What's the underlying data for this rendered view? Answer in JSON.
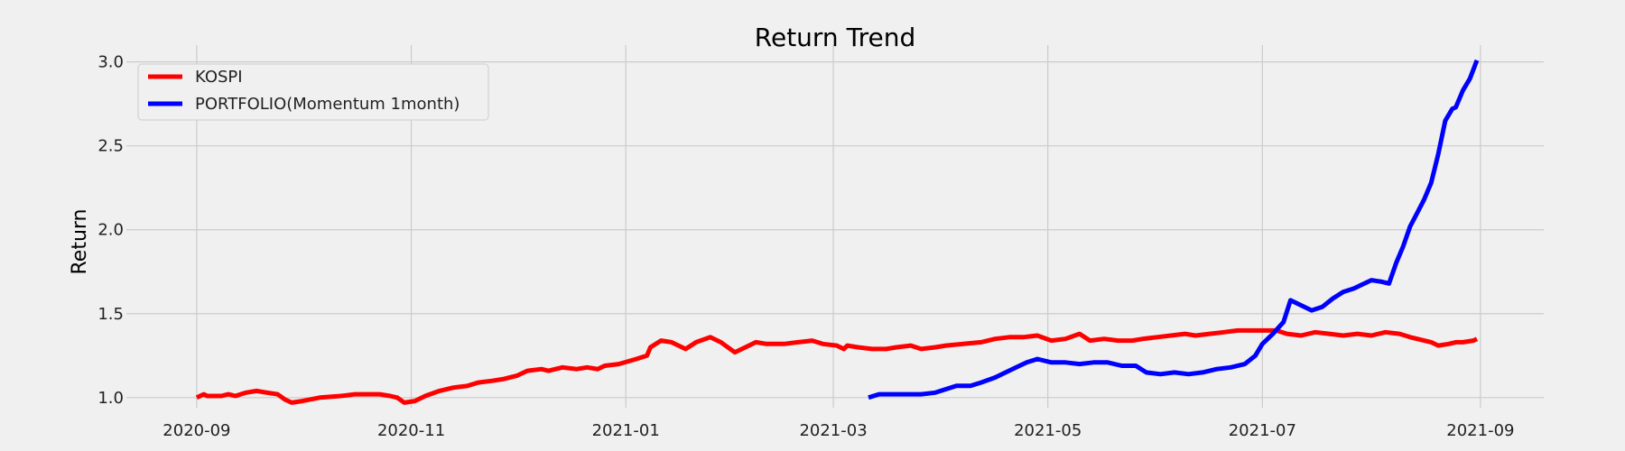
{
  "chart_data": {
    "type": "line",
    "title": "Return Trend",
    "xlabel": "",
    "ylabel": "Return",
    "x_axis_type": "date",
    "xlim": [
      "2020-08-12",
      "2021-09-19"
    ],
    "ylim": [
      0.94,
      3.1
    ],
    "x_ticks": [
      "2020-09-01",
      "2020-11-01",
      "2021-01-01",
      "2021-03-01",
      "2021-05-01",
      "2021-07-01",
      "2021-09-01"
    ],
    "x_tick_labels": [
      "2020-09",
      "2020-11",
      "2021-01",
      "2021-03",
      "2021-05",
      "2021-07",
      "2021-09"
    ],
    "y_ticks": [
      1.0,
      1.5,
      2.0,
      2.5,
      3.0
    ],
    "y_tick_labels": [
      "1.0",
      "1.5",
      "2.0",
      "2.5",
      "3.0"
    ],
    "grid": true,
    "legend_position": "top-left",
    "series": [
      {
        "name": "KOSPI",
        "color": "#ff0000",
        "points": [
          [
            "2020-09-01",
            1.0
          ],
          [
            "2020-09-03",
            1.02
          ],
          [
            "2020-09-04",
            1.01
          ],
          [
            "2020-09-08",
            1.01
          ],
          [
            "2020-09-10",
            1.02
          ],
          [
            "2020-09-12",
            1.01
          ],
          [
            "2020-09-15",
            1.03
          ],
          [
            "2020-09-18",
            1.04
          ],
          [
            "2020-09-21",
            1.03
          ],
          [
            "2020-09-24",
            1.02
          ],
          [
            "2020-09-26",
            0.99
          ],
          [
            "2020-09-28",
            0.97
          ],
          [
            "2020-10-01",
            0.98
          ],
          [
            "2020-10-06",
            1.0
          ],
          [
            "2020-10-12",
            1.01
          ],
          [
            "2020-10-16",
            1.02
          ],
          [
            "2020-10-20",
            1.02
          ],
          [
            "2020-10-23",
            1.02
          ],
          [
            "2020-10-26",
            1.01
          ],
          [
            "2020-10-28",
            1.0
          ],
          [
            "2020-10-30",
            0.97
          ],
          [
            "2020-11-02",
            0.98
          ],
          [
            "2020-11-05",
            1.01
          ],
          [
            "2020-11-09",
            1.04
          ],
          [
            "2020-11-13",
            1.06
          ],
          [
            "2020-11-17",
            1.07
          ],
          [
            "2020-11-20",
            1.09
          ],
          [
            "2020-11-24",
            1.1
          ],
          [
            "2020-11-27",
            1.11
          ],
          [
            "2020-12-01",
            1.13
          ],
          [
            "2020-12-04",
            1.16
          ],
          [
            "2020-12-08",
            1.17
          ],
          [
            "2020-12-10",
            1.16
          ],
          [
            "2020-12-14",
            1.18
          ],
          [
            "2020-12-18",
            1.17
          ],
          [
            "2020-12-21",
            1.18
          ],
          [
            "2020-12-24",
            1.17
          ],
          [
            "2020-12-26",
            1.19
          ],
          [
            "2020-12-30",
            1.2
          ],
          [
            "2021-01-04",
            1.23
          ],
          [
            "2021-01-07",
            1.25
          ],
          [
            "2021-01-08",
            1.3
          ],
          [
            "2021-01-11",
            1.34
          ],
          [
            "2021-01-14",
            1.33
          ],
          [
            "2021-01-18",
            1.29
          ],
          [
            "2021-01-21",
            1.33
          ],
          [
            "2021-01-25",
            1.36
          ],
          [
            "2021-01-28",
            1.33
          ],
          [
            "2021-02-01",
            1.27
          ],
          [
            "2021-02-04",
            1.3
          ],
          [
            "2021-02-07",
            1.33
          ],
          [
            "2021-02-10",
            1.32
          ],
          [
            "2021-02-15",
            1.32
          ],
          [
            "2021-02-19",
            1.33
          ],
          [
            "2021-02-23",
            1.34
          ],
          [
            "2021-02-26",
            1.32
          ],
          [
            "2021-03-02",
            1.31
          ],
          [
            "2021-03-04",
            1.29
          ],
          [
            "2021-03-05",
            1.31
          ],
          [
            "2021-03-08",
            1.3
          ],
          [
            "2021-03-12",
            1.29
          ],
          [
            "2021-03-16",
            1.29
          ],
          [
            "2021-03-19",
            1.3
          ],
          [
            "2021-03-23",
            1.31
          ],
          [
            "2021-03-26",
            1.29
          ],
          [
            "2021-03-30",
            1.3
          ],
          [
            "2021-04-02",
            1.31
          ],
          [
            "2021-04-07",
            1.32
          ],
          [
            "2021-04-12",
            1.33
          ],
          [
            "2021-04-16",
            1.35
          ],
          [
            "2021-04-20",
            1.36
          ],
          [
            "2021-04-24",
            1.36
          ],
          [
            "2021-04-28",
            1.37
          ],
          [
            "2021-05-02",
            1.34
          ],
          [
            "2021-05-06",
            1.35
          ],
          [
            "2021-05-10",
            1.38
          ],
          [
            "2021-05-13",
            1.34
          ],
          [
            "2021-05-17",
            1.35
          ],
          [
            "2021-05-21",
            1.34
          ],
          [
            "2021-05-25",
            1.34
          ],
          [
            "2021-05-28",
            1.35
          ],
          [
            "2021-06-01",
            1.36
          ],
          [
            "2021-06-05",
            1.37
          ],
          [
            "2021-06-09",
            1.38
          ],
          [
            "2021-06-12",
            1.37
          ],
          [
            "2021-06-16",
            1.38
          ],
          [
            "2021-06-20",
            1.39
          ],
          [
            "2021-06-24",
            1.4
          ],
          [
            "2021-06-28",
            1.4
          ],
          [
            "2021-07-01",
            1.4
          ],
          [
            "2021-07-05",
            1.4
          ],
          [
            "2021-07-08",
            1.38
          ],
          [
            "2021-07-12",
            1.37
          ],
          [
            "2021-07-16",
            1.39
          ],
          [
            "2021-07-20",
            1.38
          ],
          [
            "2021-07-24",
            1.37
          ],
          [
            "2021-07-28",
            1.38
          ],
          [
            "2021-08-01",
            1.37
          ],
          [
            "2021-08-05",
            1.39
          ],
          [
            "2021-08-09",
            1.38
          ],
          [
            "2021-08-12",
            1.36
          ],
          [
            "2021-08-16",
            1.34
          ],
          [
            "2021-08-18",
            1.33
          ],
          [
            "2021-08-20",
            1.31
          ],
          [
            "2021-08-23",
            1.32
          ],
          [
            "2021-08-25",
            1.33
          ],
          [
            "2021-08-27",
            1.33
          ],
          [
            "2021-08-30",
            1.34
          ],
          [
            "2021-08-31",
            1.35
          ]
        ]
      },
      {
        "name": "PORTFOLIO(Momentum 1month)",
        "color": "#0000ff",
        "points": [
          [
            "2021-03-11",
            1.0
          ],
          [
            "2021-03-14",
            1.02
          ],
          [
            "2021-03-18",
            1.02
          ],
          [
            "2021-03-22",
            1.02
          ],
          [
            "2021-03-26",
            1.02
          ],
          [
            "2021-03-30",
            1.03
          ],
          [
            "2021-04-02",
            1.05
          ],
          [
            "2021-04-05",
            1.07
          ],
          [
            "2021-04-09",
            1.07
          ],
          [
            "2021-04-12",
            1.09
          ],
          [
            "2021-04-16",
            1.12
          ],
          [
            "2021-04-19",
            1.15
          ],
          [
            "2021-04-22",
            1.18
          ],
          [
            "2021-04-25",
            1.21
          ],
          [
            "2021-04-28",
            1.23
          ],
          [
            "2021-05-02",
            1.21
          ],
          [
            "2021-05-06",
            1.21
          ],
          [
            "2021-05-10",
            1.2
          ],
          [
            "2021-05-14",
            1.21
          ],
          [
            "2021-05-18",
            1.21
          ],
          [
            "2021-05-22",
            1.19
          ],
          [
            "2021-05-26",
            1.19
          ],
          [
            "2021-05-29",
            1.15
          ],
          [
            "2021-06-02",
            1.14
          ],
          [
            "2021-06-06",
            1.15
          ],
          [
            "2021-06-10",
            1.14
          ],
          [
            "2021-06-14",
            1.15
          ],
          [
            "2021-06-18",
            1.17
          ],
          [
            "2021-06-22",
            1.18
          ],
          [
            "2021-06-26",
            1.2
          ],
          [
            "2021-06-29",
            1.25
          ],
          [
            "2021-07-01",
            1.32
          ],
          [
            "2021-07-04",
            1.38
          ],
          [
            "2021-07-07",
            1.45
          ],
          [
            "2021-07-09",
            1.58
          ],
          [
            "2021-07-12",
            1.55
          ],
          [
            "2021-07-15",
            1.52
          ],
          [
            "2021-07-18",
            1.54
          ],
          [
            "2021-07-21",
            1.59
          ],
          [
            "2021-07-24",
            1.63
          ],
          [
            "2021-07-27",
            1.65
          ],
          [
            "2021-07-29",
            1.67
          ],
          [
            "2021-08-01",
            1.7
          ],
          [
            "2021-08-04",
            1.69
          ],
          [
            "2021-08-06",
            1.68
          ],
          [
            "2021-08-08",
            1.8
          ],
          [
            "2021-08-10",
            1.9
          ],
          [
            "2021-08-12",
            2.02
          ],
          [
            "2021-08-14",
            2.1
          ],
          [
            "2021-08-16",
            2.18
          ],
          [
            "2021-08-18",
            2.28
          ],
          [
            "2021-08-20",
            2.45
          ],
          [
            "2021-08-22",
            2.65
          ],
          [
            "2021-08-24",
            2.72
          ],
          [
            "2021-08-25",
            2.73
          ],
          [
            "2021-08-27",
            2.83
          ],
          [
            "2021-08-29",
            2.9
          ],
          [
            "2021-08-31",
            3.01
          ]
        ]
      }
    ]
  }
}
